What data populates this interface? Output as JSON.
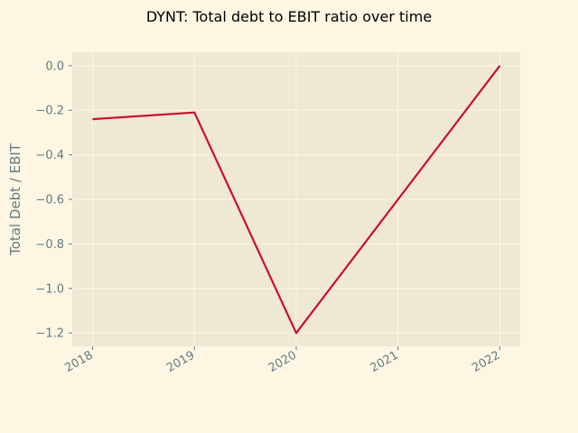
{
  "chart_data": {
    "type": "line",
    "title": "DYNT: Total debt to EBIT ratio over time",
    "xlabel": "",
    "ylabel": "Total Debt / EBIT",
    "x": [
      "2018",
      "2019",
      "2020",
      "2021",
      "2022"
    ],
    "x_values": [
      2018,
      2019,
      2020,
      2021,
      2022
    ],
    "series": [
      {
        "x": [
          2018,
          2019,
          2020,
          2022
        ],
        "values": [
          -0.24,
          -0.21,
          -1.2,
          0.0
        ],
        "color": "#c8102e"
      }
    ],
    "yticks": [
      0.0,
      -0.2,
      -0.4,
      -0.6,
      -0.8,
      -1.0,
      -1.2
    ],
    "ytick_labels": [
      "0.0",
      "−0.2",
      "−0.4",
      "−0.6",
      "−0.8",
      "−1.0",
      "−1.2"
    ],
    "xlim": [
      2017.8,
      2022.2
    ],
    "ylim": [
      -1.26,
      0.06
    ],
    "grid": true,
    "legend": "none",
    "colors": {
      "figure_background": "#fdf6e3",
      "plot_background": "#eee8d5",
      "grid": "#fdf6e3",
      "tick_text": "#657b83",
      "line": "#c8102e"
    }
  }
}
